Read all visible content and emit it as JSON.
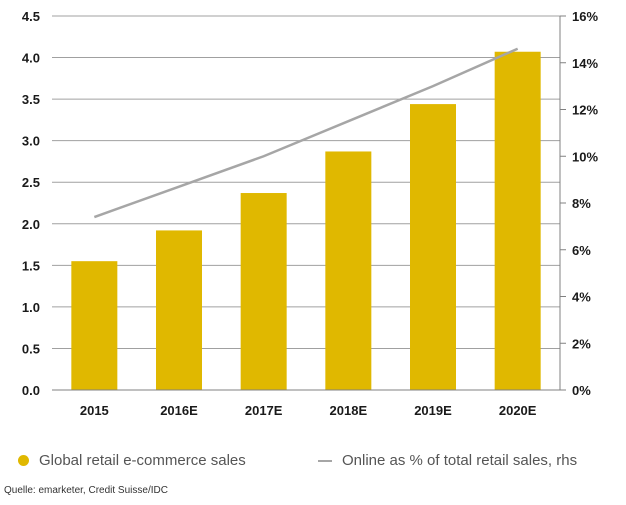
{
  "chart_data": {
    "type": "bar",
    "categories": [
      "2015",
      "2016E",
      "2017E",
      "2018E",
      "2019E",
      "2020E"
    ],
    "series": [
      {
        "name": "Global retail e-commerce sales",
        "type": "bar",
        "axis": "left",
        "color": "#e0b800",
        "values": [
          1.55,
          1.92,
          2.37,
          2.87,
          3.44,
          4.07
        ]
      },
      {
        "name": "Online as % of total retail sales, rhs",
        "type": "line",
        "axis": "right",
        "color": "#a6a6a6",
        "values": [
          7.4,
          8.7,
          10.0,
          11.5,
          13.0,
          14.6
        ]
      }
    ],
    "y_left": {
      "range": [
        0,
        4.5
      ],
      "ticks": [
        0,
        0.5,
        1,
        1.5,
        2,
        2.5,
        3,
        3.5,
        4,
        4.5
      ],
      "tick_labels": [
        "0.0",
        "0.5",
        "1.0",
        "1.5",
        "2.0",
        "2.5",
        "3.0",
        "3.5",
        "4.0",
        "4.5"
      ]
    },
    "y_right": {
      "range": [
        0,
        16
      ],
      "ticks": [
        0,
        2,
        4,
        6,
        8,
        10,
        12,
        14,
        16
      ],
      "tick_labels": [
        "0%",
        "2%",
        "4%",
        "6%",
        "8%",
        "10%",
        "12%",
        "14%",
        "16%"
      ]
    },
    "grid": true,
    "legend_position": "bottom",
    "gridline_color": "#a0a0a0",
    "axis_color": "#808080"
  },
  "legend": {
    "bar_label": "Global retail e-commerce sales",
    "line_label": "Online as % of total retail sales, rhs"
  },
  "source_note": "Quelle: emarketer, Credit Suisse/IDC"
}
